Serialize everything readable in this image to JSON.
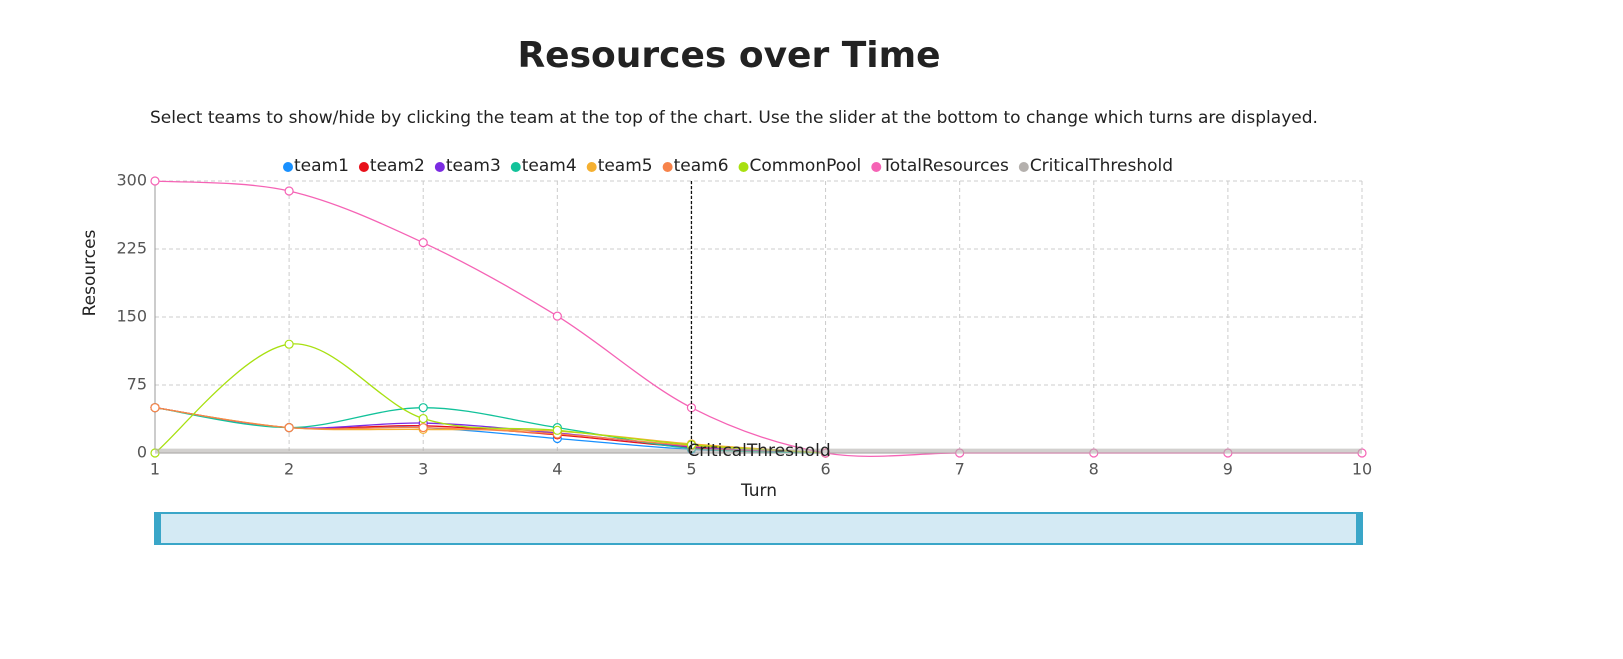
{
  "chart_data": {
    "type": "line",
    "title": "Resources over Time",
    "subtitle": "Select teams to show/hide by clicking the team at the top of the chart. Use the slider at the bottom to change which turns are displayed.",
    "x_label": "Turn",
    "y_label": "Resources",
    "x": [
      1,
      2,
      3,
      4,
      5,
      6,
      7,
      8,
      9,
      10
    ],
    "series": [
      {
        "name": "team1",
        "color": "#1890ff",
        "values": [
          50,
          28,
          28,
          16,
          4,
          0,
          null,
          null,
          null,
          null
        ]
      },
      {
        "name": "team2",
        "color": "#e8101a",
        "values": [
          50,
          28,
          30,
          20,
          6,
          0,
          null,
          null,
          null,
          null
        ]
      },
      {
        "name": "team3",
        "color": "#7b2be2",
        "values": [
          50,
          28,
          33,
          22,
          7,
          0,
          null,
          null,
          null,
          null
        ]
      },
      {
        "name": "team4",
        "color": "#12c29a",
        "values": [
          50,
          28,
          50,
          28,
          5,
          0,
          null,
          null,
          null,
          null
        ]
      },
      {
        "name": "team5",
        "color": "#f5b031",
        "values": [
          50,
          28,
          26,
          24,
          10,
          0,
          null,
          null,
          null,
          null
        ]
      },
      {
        "name": "team6",
        "color": "#f7834a",
        "values": [
          50,
          28,
          28,
          21,
          8,
          0,
          null,
          null,
          null,
          null
        ]
      },
      {
        "name": "CommonPool",
        "color": "#a8e010",
        "values": [
          0,
          120,
          38,
          25,
          9,
          0,
          null,
          null,
          null,
          null
        ]
      },
      {
        "name": "TotalResources",
        "color": "#f563b5",
        "values": [
          300,
          289,
          232,
          151,
          50,
          0,
          0,
          0,
          0,
          0
        ]
      },
      {
        "name": "CriticalThreshold",
        "color": "#b4b0ad",
        "markers": false,
        "line_width": 5,
        "values": [
          2,
          2,
          2,
          2,
          2,
          2,
          2,
          2,
          2,
          2
        ]
      }
    ],
    "reference_line": {
      "x": 5,
      "label": "CriticalThreshold"
    },
    "xlim": [
      1,
      10
    ],
    "xticks": [
      1,
      2,
      3,
      4,
      5,
      6,
      7,
      8,
      9,
      10
    ],
    "ylim": [
      0,
      300
    ],
    "yticks": [
      0,
      75,
      150,
      225,
      300
    ],
    "grid": true,
    "legend": "top"
  }
}
